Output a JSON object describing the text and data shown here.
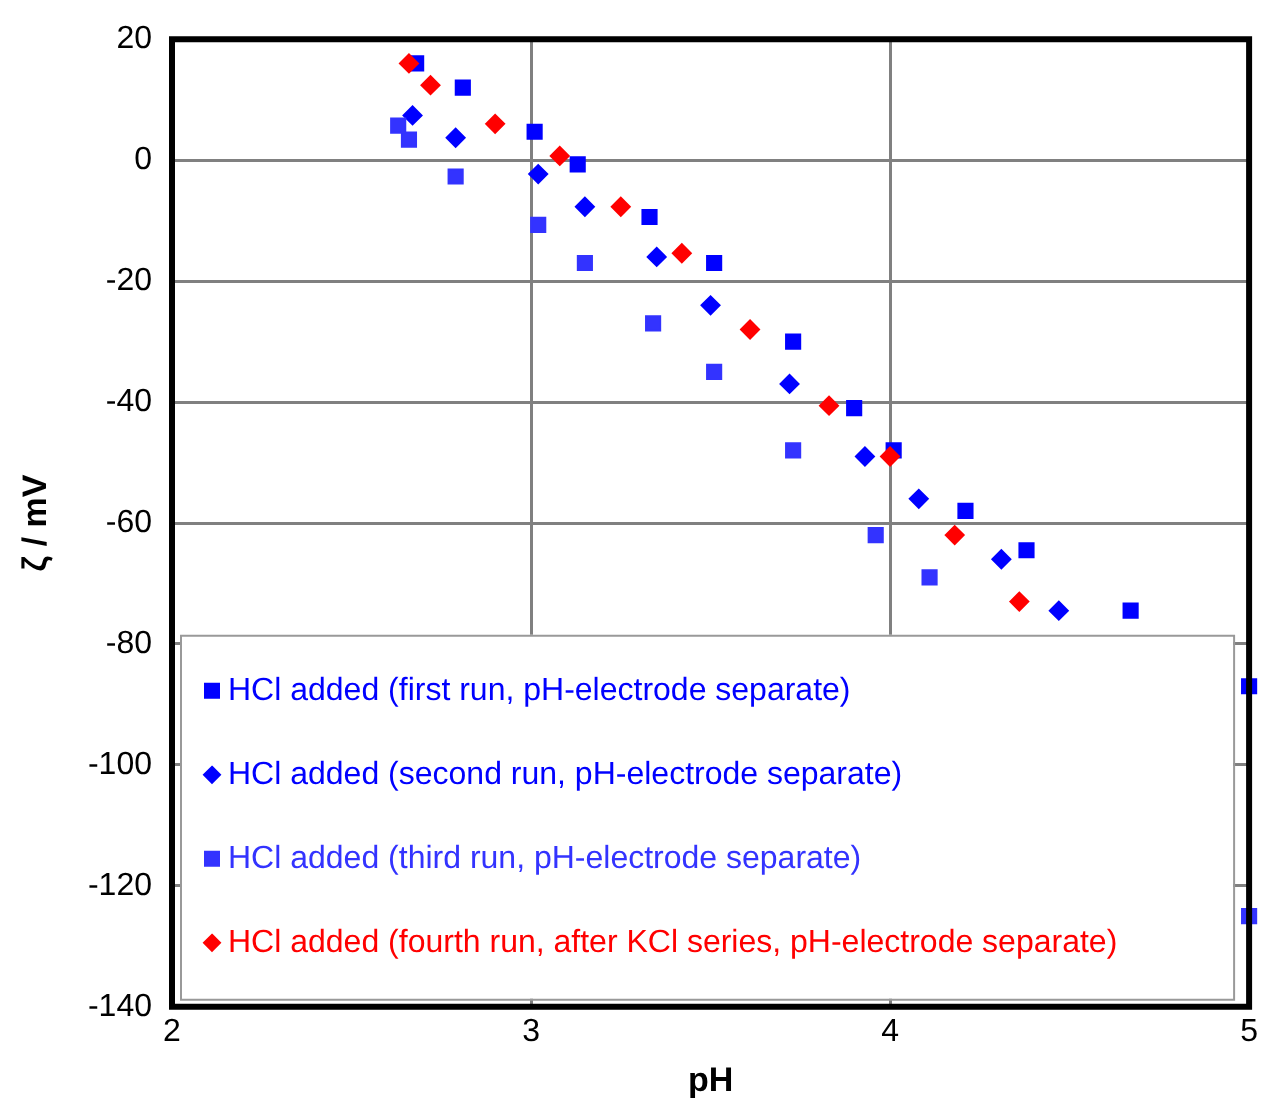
{
  "chart_data": {
    "type": "scatter",
    "xlabel": "pH",
    "ylabel": "ζ / mV",
    "xlim": [
      2,
      5
    ],
    "ylim": [
      -140,
      20
    ],
    "xticks": [
      2,
      3,
      4,
      5
    ],
    "yticks": [
      -140,
      -120,
      -100,
      -80,
      -60,
      -40,
      -20,
      0,
      20
    ],
    "grid": true,
    "legend": "bottom left",
    "series": [
      {
        "name": "HCl added (first run, pH-electrode separate)",
        "color": "#0000ff",
        "marker": "square",
        "x": [
          2.68,
          2.81,
          3.01,
          3.13,
          3.33,
          3.51,
          3.73,
          3.9,
          4.01,
          4.21,
          4.38,
          4.67,
          5
        ],
        "values": [
          16,
          12,
          4.7,
          -0.7,
          -9.4,
          -17,
          -30,
          -41,
          -48,
          -58,
          -64.5,
          -74.5,
          -87
        ]
      },
      {
        "name": "HCl added (second run, pH-electrode separate)",
        "color": "#0000ff",
        "marker": "diamond",
        "x": [
          2.67,
          2.79,
          3.02,
          3.15,
          3.35,
          3.5,
          3.72,
          3.93,
          4.08,
          4.31,
          4.47
        ],
        "values": [
          7.4,
          3.7,
          -2.3,
          -7.7,
          -16,
          -24,
          -37,
          -49,
          -56,
          -66,
          -74.5
        ]
      },
      {
        "name": "HCl added (third run, pH-electrode separate)",
        "color": "#3333ff",
        "marker": "square",
        "x": [
          2.63,
          2.66,
          2.79,
          3.02,
          3.15,
          3.34,
          3.51,
          3.73,
          3.96,
          4.11,
          5
        ],
        "values": [
          5.7,
          3.4,
          -2.7,
          -10.7,
          -17,
          -27,
          -35,
          -48,
          -62,
          -69,
          -125
        ]
      },
      {
        "name": "HCl added (fourth run, after KCl series, pH-electrode separate)",
        "color": "#ff0000",
        "marker": "diamond",
        "x": [
          2.66,
          2.72,
          2.9,
          3.08,
          3.25,
          3.42,
          3.61,
          3.83,
          4.0,
          4.18,
          4.36
        ],
        "values": [
          16,
          12.4,
          6,
          0.7,
          -7.7,
          -15.4,
          -28,
          -40.6,
          -49,
          -62,
          -73
        ]
      }
    ]
  }
}
